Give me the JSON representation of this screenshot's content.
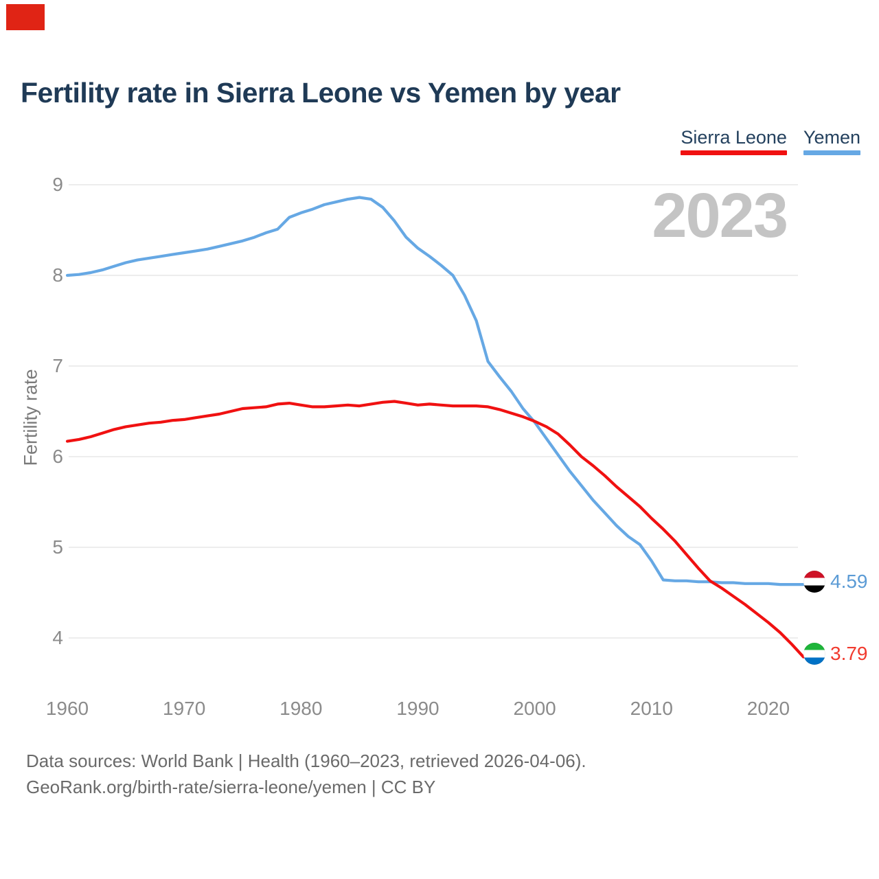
{
  "top_left_marker_color": "#e02415",
  "header": {
    "title": "Fertility rate in Sierra Leone vs Yemen by year",
    "legend": [
      {
        "label": "Sierra Leone",
        "color": "#f01111"
      },
      {
        "label": "Yemen",
        "color": "#66a8e4"
      }
    ]
  },
  "watermark": "2023",
  "chart_data": {
    "type": "line",
    "title": "Fertility rate in Sierra Leone vs Yemen by year",
    "xlabel": "",
    "ylabel": "Fertility rate",
    "x_start": 1960,
    "x_end": 2023,
    "x_ticks": [
      1960,
      1970,
      1980,
      1990,
      2000,
      2010,
      2020
    ],
    "y_ticks": [
      9,
      8,
      7,
      6,
      5,
      4
    ],
    "ylim": [
      4,
      9
    ],
    "grid": "horizontal-only",
    "legend_position": "top-right",
    "gridline_color": "#ededed",
    "series": [
      {
        "name": "Yemen",
        "color": "#66a8e4",
        "end_label": "4.59",
        "values": [
          8.0,
          8.01,
          8.03,
          8.06,
          8.1,
          8.14,
          8.17,
          8.19,
          8.21,
          8.23,
          8.25,
          8.27,
          8.29,
          8.32,
          8.35,
          8.38,
          8.42,
          8.47,
          8.51,
          8.64,
          8.69,
          8.73,
          8.78,
          8.81,
          8.84,
          8.86,
          8.84,
          8.75,
          8.6,
          8.42,
          8.3,
          8.21,
          8.11,
          8.0,
          7.78,
          7.5,
          7.05,
          6.88,
          6.72,
          6.53,
          6.38,
          6.2,
          6.02,
          5.84,
          5.68,
          5.52,
          5.38,
          5.24,
          5.12,
          5.03,
          4.85,
          4.64,
          4.63,
          4.63,
          4.62,
          4.62,
          4.61,
          4.61,
          4.6,
          4.6,
          4.6,
          4.59,
          4.59,
          4.59
        ]
      },
      {
        "name": "Sierra Leone",
        "color": "#f01111",
        "end_label": "3.79",
        "values": [
          6.17,
          6.19,
          6.22,
          6.26,
          6.3,
          6.33,
          6.35,
          6.37,
          6.38,
          6.4,
          6.41,
          6.43,
          6.45,
          6.47,
          6.5,
          6.53,
          6.54,
          6.55,
          6.58,
          6.59,
          6.57,
          6.55,
          6.55,
          6.56,
          6.57,
          6.56,
          6.58,
          6.6,
          6.61,
          6.59,
          6.57,
          6.58,
          6.57,
          6.56,
          6.56,
          6.56,
          6.55,
          6.52,
          6.48,
          6.44,
          6.39,
          6.33,
          6.25,
          6.13,
          6.0,
          5.9,
          5.79,
          5.67,
          5.56,
          5.45,
          5.32,
          5.2,
          5.07,
          4.92,
          4.77,
          4.63,
          4.55,
          4.46,
          4.37,
          4.27,
          4.17,
          4.06,
          3.93,
          3.79
        ]
      }
    ]
  },
  "end_labels": [
    {
      "series": "Yemen",
      "value": "4.59",
      "value_color": "#5b9bd5",
      "flag": "yemen-flag",
      "flag_colors": [
        "#ce1126",
        "#ffffff",
        "#000000"
      ]
    },
    {
      "series": "Sierra Leone",
      "value": "3.79",
      "value_color": "#f13a2e",
      "flag": "sierra-leone-flag",
      "flag_colors": [
        "#1eb53a",
        "#ffffff",
        "#0072c6"
      ]
    }
  ],
  "footer": {
    "line1": "Data sources: World Bank | Health (1960–2023, retrieved 2026-04-06).",
    "line2": "GeoRank.org/birth-rate/sierra-leone/yemen | CC BY"
  }
}
